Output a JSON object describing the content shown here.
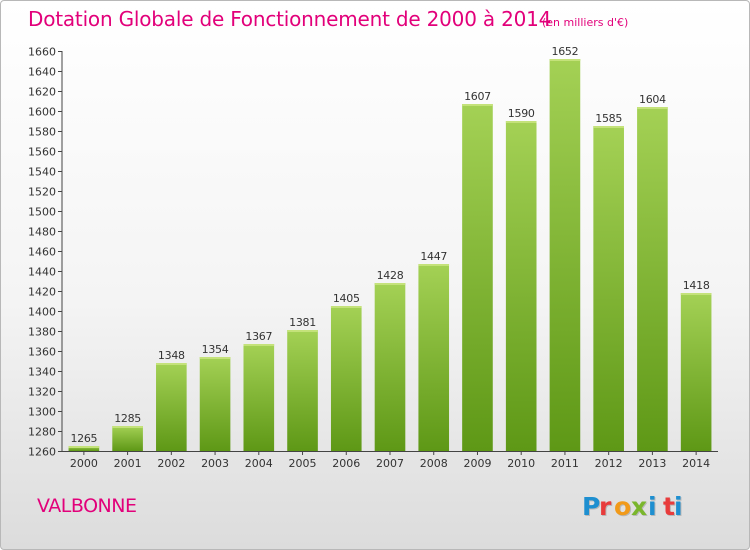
{
  "header": {
    "title": "Dotation Globale de Fonctionnement de 2000 à 2014",
    "unit": "(en milliers d'€)"
  },
  "footer": {
    "commune": "VALBONNE",
    "logo_text": "Proxiti"
  },
  "colors": {
    "title": "#e2007a",
    "bar_light": "#a4d155",
    "bar_dark": "#5e9816",
    "logo_letters": [
      "#1e8fd0",
      "#e83c3c",
      "#f19a1a",
      "#7ab62c",
      "#1e8fd0",
      "#e83c3c",
      "#1e8fd0"
    ]
  },
  "chart_data": {
    "type": "bar",
    "title": "Dotation Globale de Fonctionnement de 2000 à 2014",
    "subtitle": "(en milliers d'€)",
    "xlabel": "",
    "ylabel": "",
    "categories": [
      "2000",
      "2001",
      "2002",
      "2003",
      "2004",
      "2005",
      "2006",
      "2007",
      "2008",
      "2009",
      "2010",
      "2011",
      "2012",
      "2013",
      "2014"
    ],
    "values": [
      1265,
      1285,
      1348,
      1354,
      1367,
      1381,
      1405,
      1428,
      1447,
      1607,
      1590,
      1652,
      1585,
      1604,
      1418
    ],
    "ylim": [
      1260,
      1660
    ],
    "ytick_step": 20,
    "grid": false,
    "data_labels": true
  }
}
